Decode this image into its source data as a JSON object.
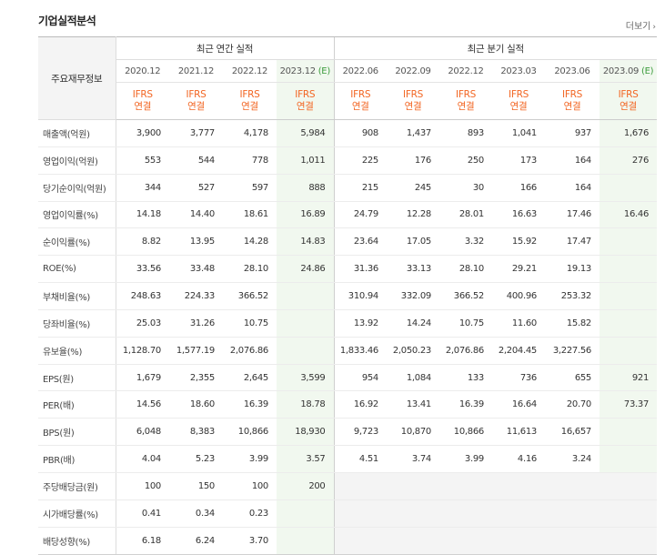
{
  "title": "기업실적분석",
  "more_label": "더보기",
  "corner_label": "주요재무정보",
  "group_headers": [
    "최근 연간 실적",
    "최근 분기 실적"
  ],
  "periods": [
    "2020.12",
    "2021.12",
    "2022.12",
    "2023.12",
    "2022.06",
    "2022.09",
    "2022.12",
    "2023.03",
    "2023.06",
    "2023.09"
  ],
  "estimate_mark": "(E)",
  "ifrs_top": "IFRS",
  "ifrs_bottom": "연결",
  "rows": [
    {
      "label": "매출액(억원)",
      "values": [
        "3,900",
        "3,777",
        "4,178",
        "5,984",
        "908",
        "1,437",
        "893",
        "1,041",
        "937",
        "1,676"
      ]
    },
    {
      "label": "영업이익(억원)",
      "values": [
        "553",
        "544",
        "778",
        "1,011",
        "225",
        "176",
        "250",
        "173",
        "164",
        "276"
      ]
    },
    {
      "label": "당기순이익(억원)",
      "values": [
        "344",
        "527",
        "597",
        "888",
        "215",
        "245",
        "30",
        "166",
        "164",
        ""
      ]
    },
    {
      "label": "영업이익률(%)",
      "values": [
        "14.18",
        "14.40",
        "18.61",
        "16.89",
        "24.79",
        "12.28",
        "28.01",
        "16.63",
        "17.46",
        "16.46"
      ]
    },
    {
      "label": "순이익률(%)",
      "values": [
        "8.82",
        "13.95",
        "14.28",
        "14.83",
        "23.64",
        "17.05",
        "3.32",
        "15.92",
        "17.47",
        ""
      ]
    },
    {
      "label": "ROE(%)",
      "values": [
        "33.56",
        "33.48",
        "28.10",
        "24.86",
        "31.36",
        "33.13",
        "28.10",
        "29.21",
        "19.13",
        ""
      ]
    },
    {
      "label": "부채비율(%)",
      "values": [
        "248.63",
        "224.33",
        "366.52",
        "",
        "310.94",
        "332.09",
        "366.52",
        "400.96",
        "253.32",
        ""
      ]
    },
    {
      "label": "당좌비율(%)",
      "values": [
        "25.03",
        "31.26",
        "10.75",
        "",
        "13.92",
        "14.24",
        "10.75",
        "11.60",
        "15.82",
        ""
      ]
    },
    {
      "label": "유보율(%)",
      "values": [
        "1,128.70",
        "1,577.19",
        "2,076.86",
        "",
        "1,833.46",
        "2,050.23",
        "2,076.86",
        "2,204.45",
        "3,227.56",
        ""
      ]
    },
    {
      "label": "EPS(원)",
      "values": [
        "1,679",
        "2,355",
        "2,645",
        "3,599",
        "954",
        "1,084",
        "133",
        "736",
        "655",
        "921"
      ]
    },
    {
      "label": "PER(배)",
      "values": [
        "14.56",
        "18.60",
        "16.39",
        "18.78",
        "16.92",
        "13.41",
        "16.39",
        "16.64",
        "20.70",
        "73.37"
      ]
    },
    {
      "label": "BPS(원)",
      "values": [
        "6,048",
        "8,383",
        "10,866",
        "18,930",
        "9,723",
        "10,870",
        "10,866",
        "11,613",
        "16,657",
        ""
      ]
    },
    {
      "label": "PBR(배)",
      "values": [
        "4.04",
        "5.23",
        "3.99",
        "3.57",
        "4.51",
        "3.74",
        "3.99",
        "4.16",
        "3.24",
        ""
      ]
    },
    {
      "label": "주당배당금(원)",
      "values": [
        "100",
        "150",
        "100",
        "200",
        "",
        "",
        "",
        "",
        "",
        ""
      ]
    },
    {
      "label": "시가배당률(%)",
      "values": [
        "0.41",
        "0.34",
        "0.23",
        "",
        "",
        "",
        "",
        "",
        "",
        ""
      ]
    },
    {
      "label": "배당성향(%)",
      "values": [
        "6.18",
        "6.24",
        "3.70",
        "",
        "",
        "",
        "",
        "",
        "",
        ""
      ]
    }
  ]
}
